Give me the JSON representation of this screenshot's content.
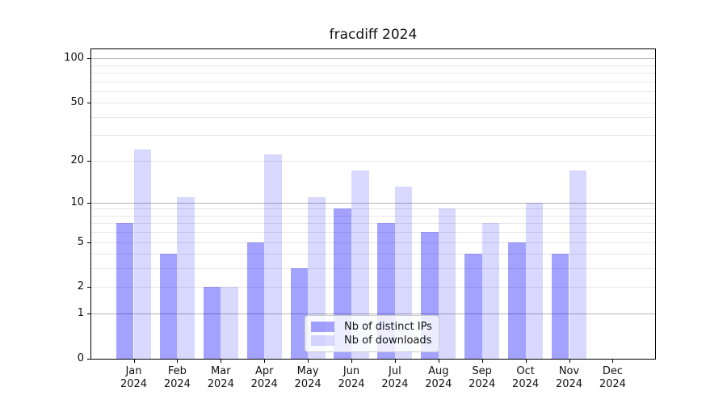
{
  "chart_data": {
    "type": "bar",
    "title": "fracdiff 2024",
    "categories": [
      "Jan\n2024",
      "Feb\n2024",
      "Mar\n2024",
      "Apr\n2024",
      "May\n2024",
      "Jun\n2024",
      "Jul\n2024",
      "Aug\n2024",
      "Sep\n2024",
      "Oct\n2024",
      "Nov\n2024",
      "Dec\n2024"
    ],
    "series": [
      {
        "name": "Nb of distinct IPs",
        "key": "distinct-ips",
        "color": "#a3a3ff",
        "fill": "rgba(0,0,255,0.36)",
        "values": [
          7,
          4,
          2,
          5,
          3,
          9,
          7,
          6,
          4,
          5,
          4,
          0
        ]
      },
      {
        "name": "Nb of downloads",
        "key": "downloads",
        "color": "#d9d9ff",
        "fill": "rgba(0,0,255,0.15)",
        "values": [
          24,
          11,
          2,
          22,
          11,
          17,
          13,
          9,
          7,
          10,
          17,
          0
        ]
      }
    ],
    "yscale": "log1p",
    "ylim": [
      0,
      115
    ],
    "y_ticks": [
      0,
      1,
      2,
      5,
      10,
      20,
      50,
      100
    ],
    "y_major_gridlines": [
      1,
      10,
      100
    ],
    "y_minor_gridlines": [
      2,
      3,
      4,
      5,
      6,
      7,
      8,
      9,
      20,
      30,
      40,
      50,
      60,
      70,
      80,
      90
    ],
    "grid": true,
    "legend_position": "lower center",
    "colors": {
      "bar_distinct_ips": "#a3a3ff",
      "bar_downloads": "#d9d9ff",
      "major_grid": "#b5b5b5",
      "minor_grid": "#e7e7e7",
      "axis": "#000000",
      "text": "#111111",
      "legend_bg": "rgba(255,255,255,0.8)",
      "legend_border": "#cccccc"
    }
  }
}
